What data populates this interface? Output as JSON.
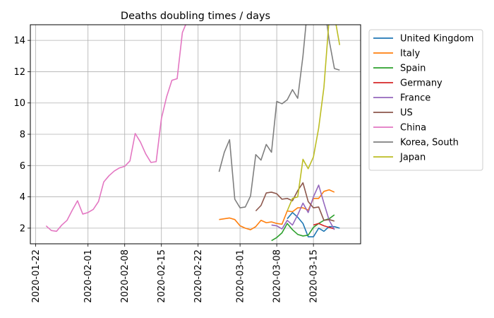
{
  "chart_data": {
    "type": "line",
    "title": "Deaths doubling times / days",
    "xlabel": "",
    "ylabel": "",
    "x_axis_type": "date",
    "xlim": [
      "2020-01-21",
      "2020-03-24"
    ],
    "ylim": [
      1.0,
      15.0
    ],
    "x_ticks": [
      "2020-01-22",
      "2020-02-01",
      "2020-02-08",
      "2020-02-15",
      "2020-02-22",
      "2020-03-01",
      "2020-03-08",
      "2020-03-15"
    ],
    "y_ticks": [
      2,
      4,
      6,
      8,
      10,
      12,
      14
    ],
    "grid": true,
    "legend_position": "outside-right",
    "series": [
      {
        "name": "United Kingdom",
        "color": "#1f77b4",
        "points": [
          [
            "2020-03-10",
            2.6
          ],
          [
            "2020-03-11",
            3.0
          ],
          [
            "2020-03-12",
            2.7
          ],
          [
            "2020-03-13",
            2.3
          ],
          [
            "2020-03-14",
            1.45
          ],
          [
            "2020-03-15",
            1.45
          ],
          [
            "2020-03-16",
            2.0
          ],
          [
            "2020-03-17",
            1.8
          ],
          [
            "2020-03-18",
            2.1
          ],
          [
            "2020-03-19",
            2.1
          ],
          [
            "2020-03-20",
            2.0
          ]
        ]
      },
      {
        "name": "Italy",
        "color": "#ff7f0e",
        "points": [
          [
            "2020-02-26",
            2.55
          ],
          [
            "2020-02-27",
            2.6
          ],
          [
            "2020-02-28",
            2.65
          ],
          [
            "2020-02-29",
            2.55
          ],
          [
            "2020-03-01",
            2.15
          ],
          [
            "2020-03-02",
            2.0
          ],
          [
            "2020-03-03",
            1.9
          ],
          [
            "2020-03-04",
            2.1
          ],
          [
            "2020-03-05",
            2.5
          ],
          [
            "2020-03-06",
            2.35
          ],
          [
            "2020-03-07",
            2.4
          ],
          [
            "2020-03-08",
            2.3
          ],
          [
            "2020-03-09",
            2.25
          ],
          [
            "2020-03-10",
            3.1
          ],
          [
            "2020-03-11",
            3.05
          ],
          [
            "2020-03-12",
            3.3
          ],
          [
            "2020-03-13",
            3.3
          ],
          [
            "2020-03-14",
            3.15
          ],
          [
            "2020-03-15",
            3.9
          ],
          [
            "2020-03-16",
            3.9
          ],
          [
            "2020-03-17",
            4.35
          ],
          [
            "2020-03-18",
            4.45
          ],
          [
            "2020-03-19",
            4.3
          ]
        ]
      },
      {
        "name": "Spain",
        "color": "#2ca02c",
        "points": [
          [
            "2020-03-07",
            1.2
          ],
          [
            "2020-03-08",
            1.4
          ],
          [
            "2020-03-09",
            1.7
          ],
          [
            "2020-03-10",
            2.3
          ],
          [
            "2020-03-11",
            1.9
          ],
          [
            "2020-03-12",
            1.6
          ],
          [
            "2020-03-13",
            1.5
          ],
          [
            "2020-03-14",
            1.55
          ],
          [
            "2020-03-15",
            2.05
          ],
          [
            "2020-03-16",
            2.3
          ],
          [
            "2020-03-17",
            2.5
          ],
          [
            "2020-03-18",
            2.6
          ],
          [
            "2020-03-19",
            2.85
          ]
        ]
      },
      {
        "name": "Germany",
        "color": "#d62728",
        "points": [
          [
            "2020-03-15",
            2.2
          ],
          [
            "2020-03-16",
            2.3
          ],
          [
            "2020-03-17",
            2.15
          ],
          [
            "2020-03-18",
            2.05
          ],
          [
            "2020-03-19",
            1.95
          ]
        ]
      },
      {
        "name": "France",
        "color": "#9467bd",
        "points": [
          [
            "2020-03-07",
            2.2
          ],
          [
            "2020-03-08",
            2.15
          ],
          [
            "2020-03-09",
            1.95
          ],
          [
            "2020-03-10",
            2.5
          ],
          [
            "2020-03-11",
            2.2
          ],
          [
            "2020-03-12",
            2.85
          ],
          [
            "2020-03-13",
            3.6
          ],
          [
            "2020-03-14",
            3.0
          ],
          [
            "2020-03-15",
            4.0
          ],
          [
            "2020-03-16",
            4.75
          ],
          [
            "2020-03-17",
            3.6
          ],
          [
            "2020-03-18",
            2.5
          ],
          [
            "2020-03-19",
            1.9
          ]
        ]
      },
      {
        "name": "US",
        "color": "#8c564b",
        "points": [
          [
            "2020-03-04",
            3.1
          ],
          [
            "2020-03-05",
            3.45
          ],
          [
            "2020-03-06",
            4.25
          ],
          [
            "2020-03-07",
            4.3
          ],
          [
            "2020-03-08",
            4.2
          ],
          [
            "2020-03-09",
            3.85
          ],
          [
            "2020-03-10",
            3.9
          ],
          [
            "2020-03-11",
            3.75
          ],
          [
            "2020-03-12",
            4.4
          ],
          [
            "2020-03-13",
            4.9
          ],
          [
            "2020-03-14",
            3.7
          ],
          [
            "2020-03-15",
            3.3
          ],
          [
            "2020-03-16",
            3.35
          ],
          [
            "2020-03-17",
            2.5
          ],
          [
            "2020-03-18",
            2.55
          ],
          [
            "2020-03-19",
            2.45
          ]
        ]
      },
      {
        "name": "China",
        "color": "#e377c2",
        "points": [
          [
            "2020-01-24",
            2.15
          ],
          [
            "2020-01-25",
            1.85
          ],
          [
            "2020-01-26",
            1.8
          ],
          [
            "2020-01-27",
            2.2
          ],
          [
            "2020-01-28",
            2.5
          ],
          [
            "2020-01-29",
            3.15
          ],
          [
            "2020-01-30",
            3.75
          ],
          [
            "2020-01-31",
            2.9
          ],
          [
            "2020-02-01",
            3.0
          ],
          [
            "2020-02-02",
            3.2
          ],
          [
            "2020-02-03",
            3.7
          ],
          [
            "2020-02-04",
            4.95
          ],
          [
            "2020-02-05",
            5.35
          ],
          [
            "2020-02-06",
            5.65
          ],
          [
            "2020-02-07",
            5.85
          ],
          [
            "2020-02-08",
            5.95
          ],
          [
            "2020-02-09",
            6.3
          ],
          [
            "2020-02-10",
            8.05
          ],
          [
            "2020-02-11",
            7.5
          ],
          [
            "2020-02-12",
            6.75
          ],
          [
            "2020-02-13",
            6.2
          ],
          [
            "2020-02-14",
            6.25
          ],
          [
            "2020-02-15",
            9.0
          ],
          [
            "2020-02-16",
            10.4
          ],
          [
            "2020-02-17",
            11.45
          ],
          [
            "2020-02-18",
            11.55
          ],
          [
            "2020-02-19",
            14.5
          ],
          [
            "2020-02-20",
            15.3
          ]
        ]
      },
      {
        "name": "Korea, South",
        "color": "#7f7f7f",
        "points": [
          [
            "2020-02-26",
            5.6
          ],
          [
            "2020-02-27",
            6.85
          ],
          [
            "2020-02-28",
            7.65
          ],
          [
            "2020-02-29",
            3.85
          ],
          [
            "2020-03-01",
            3.3
          ],
          [
            "2020-03-02",
            3.35
          ],
          [
            "2020-03-03",
            4.05
          ],
          [
            "2020-03-04",
            6.7
          ],
          [
            "2020-03-05",
            6.35
          ],
          [
            "2020-03-06",
            7.35
          ],
          [
            "2020-03-07",
            6.85
          ],
          [
            "2020-03-08",
            10.1
          ],
          [
            "2020-03-09",
            9.95
          ],
          [
            "2020-03-10",
            10.2
          ],
          [
            "2020-03-11",
            10.85
          ],
          [
            "2020-03-12",
            10.3
          ],
          [
            "2020-03-13",
            13.0
          ],
          [
            "2020-03-14",
            16.5
          ],
          [
            "2020-03-17",
            16.5
          ],
          [
            "2020-03-18",
            14.0
          ],
          [
            "2020-03-19",
            12.2
          ],
          [
            "2020-03-20",
            12.1
          ]
        ]
      },
      {
        "name": "Japan",
        "color": "#bcbd22",
        "points": [
          [
            "2020-03-10",
            3.1
          ],
          [
            "2020-03-11",
            3.9
          ],
          [
            "2020-03-12",
            4.0
          ],
          [
            "2020-03-13",
            6.4
          ],
          [
            "2020-03-14",
            5.8
          ],
          [
            "2020-03-15",
            6.55
          ],
          [
            "2020-03-16",
            8.4
          ],
          [
            "2020-03-17",
            11.0
          ],
          [
            "2020-03-18",
            15.4
          ],
          [
            "2020-03-19",
            15.6
          ],
          [
            "2020-03-20",
            13.7
          ]
        ]
      }
    ]
  }
}
